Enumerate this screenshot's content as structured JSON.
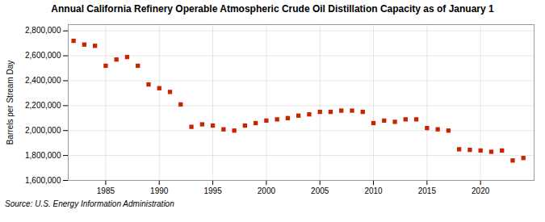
{
  "chart_data": {
    "type": "scatter",
    "title": "Annual California Refinery Operable Atmospheric Crude Oil Distillation Capacity as of January 1",
    "ylabel": "Barrels per Stream Day",
    "source": "Source: U.S. Energy Information Administration",
    "color": "#cc2200",
    "marker": "square",
    "grid": true,
    "x": [
      1982,
      1983,
      1984,
      1985,
      1986,
      1987,
      1988,
      1989,
      1990,
      1991,
      1992,
      1993,
      1994,
      1995,
      1996,
      1997,
      1998,
      1999,
      2000,
      2001,
      2002,
      2003,
      2004,
      2005,
      2006,
      2007,
      2008,
      2009,
      2010,
      2011,
      2012,
      2013,
      2014,
      2015,
      2016,
      2017,
      2018,
      2019,
      2020,
      2021,
      2022,
      2023,
      2024
    ],
    "values": [
      2720000,
      2690000,
      2680000,
      2520000,
      2570000,
      2590000,
      2520000,
      2370000,
      2340000,
      2310000,
      2210000,
      2030000,
      2050000,
      2040000,
      2010000,
      2000000,
      2040000,
      2060000,
      2080000,
      2090000,
      2100000,
      2120000,
      2130000,
      2150000,
      2150000,
      2160000,
      2160000,
      2150000,
      2060000,
      2080000,
      2070000,
      2090000,
      2090000,
      2020000,
      2010000,
      2000000,
      1850000,
      1845000,
      1840000,
      1830000,
      1840000,
      1760000,
      1780000
    ],
    "xlim": [
      1981.5,
      2025
    ],
    "xticks": [
      1985,
      1990,
      1995,
      2000,
      2005,
      2010,
      2015,
      2020
    ],
    "ylim": [
      1600000,
      2850000
    ],
    "yticks": [
      {
        "value": 1600000,
        "label": "1,600,000"
      },
      {
        "value": 1800000,
        "label": "1,800,000"
      },
      {
        "value": 2000000,
        "label": "2,000,000"
      },
      {
        "value": 2200000,
        "label": "2,200,000"
      },
      {
        "value": 2400000,
        "label": "2,400,000"
      },
      {
        "value": 2600000,
        "label": "2,600,000"
      },
      {
        "value": 2800000,
        "label": "2,800,000"
      }
    ]
  }
}
